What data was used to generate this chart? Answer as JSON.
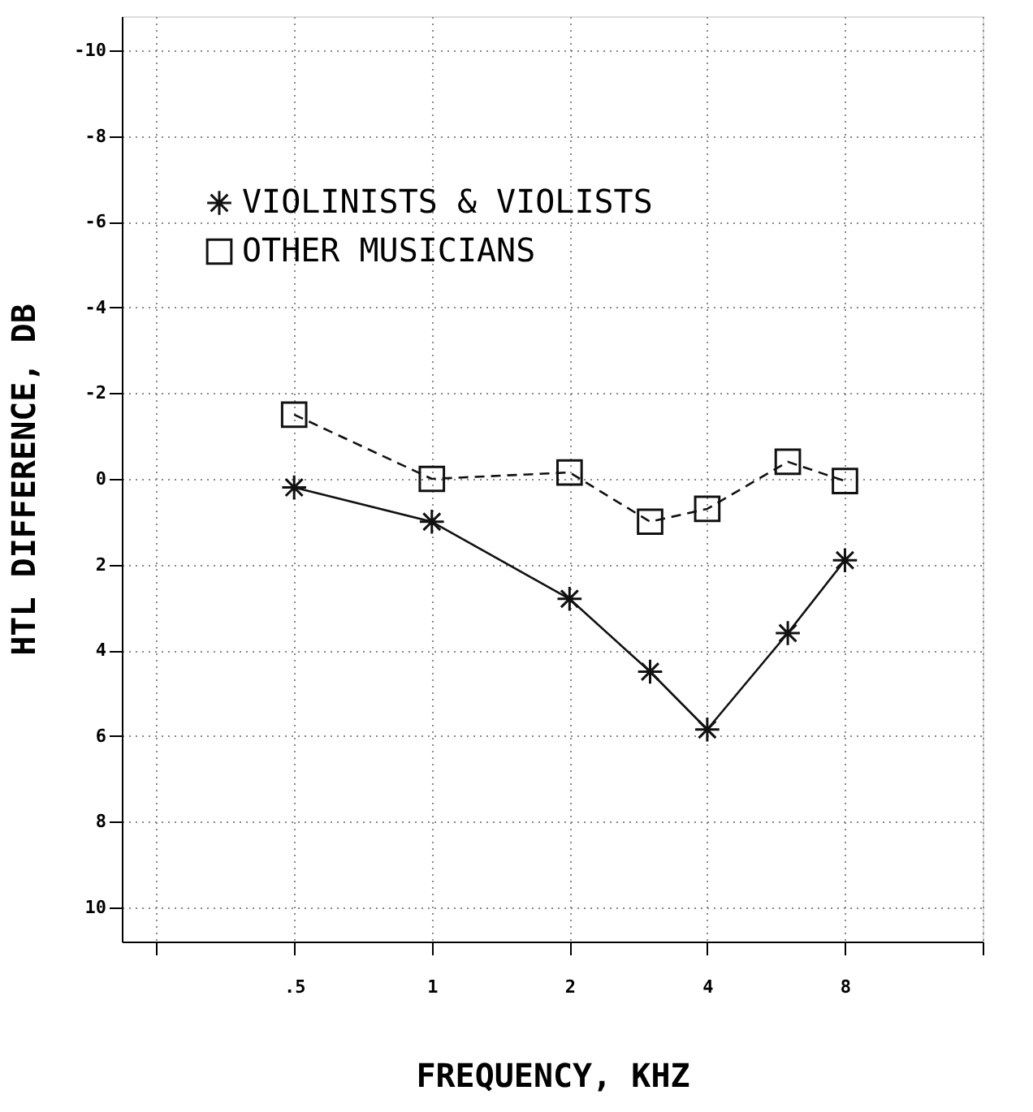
{
  "chart_data": {
    "type": "line",
    "xlabel": "FREQUENCY, KHZ",
    "ylabel": "HTL DIFFERENCE, DB",
    "x": [
      0.5,
      1,
      2,
      3,
      4,
      6,
      8
    ],
    "series": [
      {
        "name": "VIOLINISTS & VIOLISTS",
        "color": "#111111",
        "marker": "cross",
        "line_style": "solid",
        "values": [
          0.2,
          1.0,
          2.8,
          4.5,
          5.85,
          3.6,
          1.9
        ]
      },
      {
        "name": "OTHER MUSICIANS",
        "color": "#111111",
        "marker": "square",
        "line_style": "dashed",
        "values": [
          -1.5,
          0.0,
          -0.15,
          1.0,
          0.7,
          -0.4,
          0.05
        ]
      }
    ],
    "log": "x",
    "xlim": [
      0.21,
      16
    ],
    "xticks": [
      {
        "value": 0.25,
        "label": null
      },
      {
        "value": 0.5,
        "label": ".5"
      },
      1,
      2,
      4,
      8,
      {
        "value": 16,
        "label": null
      }
    ],
    "ylim": [
      10.8,
      -10.8
    ],
    "yticks": [
      -10,
      -8,
      -6,
      -4,
      -2,
      0,
      2,
      4,
      6,
      8,
      10
    ],
    "grid": true,
    "legend": "top left"
  }
}
